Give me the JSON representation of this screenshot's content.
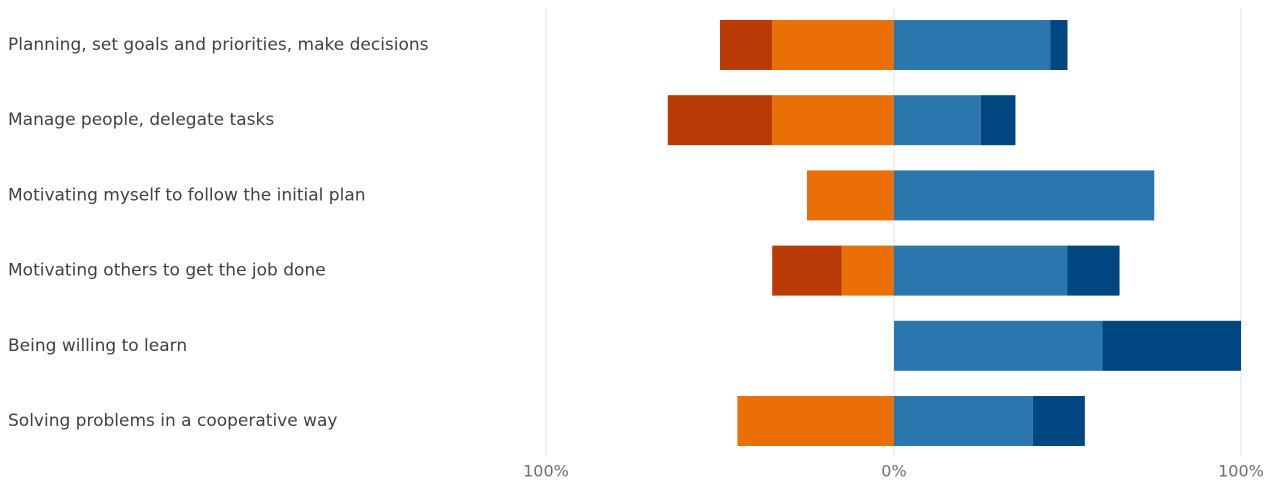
{
  "chart_data": {
    "type": "bar",
    "orientation": "horizontal",
    "stacked": "diverging",
    "categories": [
      "Planning, set goals and priorities, make decisions",
      "Manage people, delegate tasks",
      "Motivating myself to follow the initial plan",
      "Motivating others to get the job done",
      "Being willing to learn",
      "Solving problems in a cooperative way"
    ],
    "series": [
      {
        "color": "#BA3A06",
        "side": "negative",
        "values": [
          15,
          30,
          0,
          20,
          0,
          0
        ]
      },
      {
        "color": "#EB6F07",
        "side": "negative",
        "values": [
          35,
          35,
          25,
          15,
          0,
          45
        ]
      },
      {
        "color": "#2A77B0",
        "side": "positive",
        "values": [
          45,
          25,
          75,
          50,
          60,
          40
        ]
      },
      {
        "color": "#004680",
        "side": "positive",
        "values": [
          5,
          10,
          0,
          15,
          40,
          15
        ]
      }
    ],
    "x_ticks": [
      "100%",
      "0%",
      "100%"
    ],
    "xlim": [
      -100,
      100
    ],
    "grid": true,
    "legend": "none"
  },
  "colors": {
    "grid": "#E0E0E0",
    "label_text": "#404040",
    "tick_text": "#6E6E6E"
  }
}
